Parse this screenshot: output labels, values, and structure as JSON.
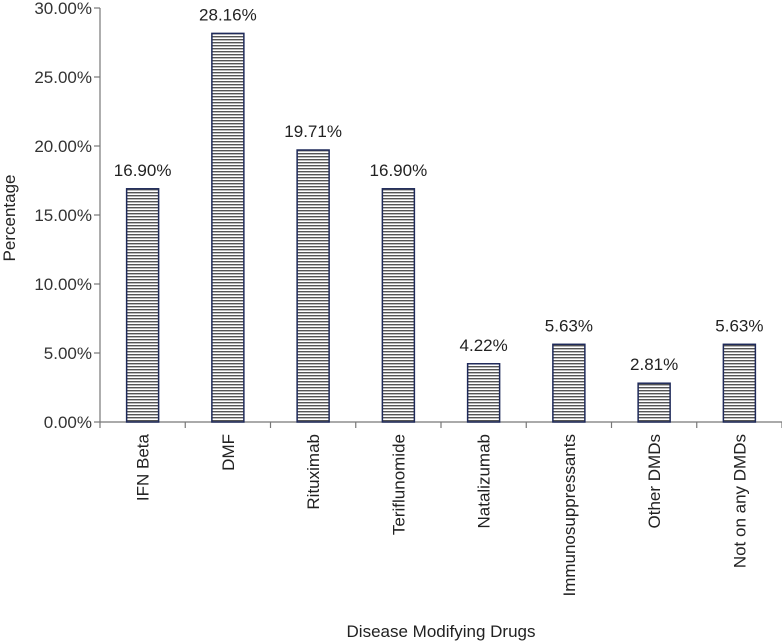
{
  "chart_data": {
    "type": "bar",
    "title": "",
    "xlabel": "Disease Modifying Drugs",
    "ylabel": "Percentage",
    "ylim": [
      0,
      30
    ],
    "y_ticks": [
      "0.00%",
      "5.00%",
      "10.00%",
      "15.00%",
      "20.00%",
      "25.00%",
      "30.00%"
    ],
    "categories": [
      "IFN Beta",
      "DMF",
      "Rituximab",
      "Teriflunomide",
      "Natalizumab",
      "Immunosuppressants",
      "Other DMDs",
      "Not on any DMDs"
    ],
    "values": [
      16.9,
      28.16,
      19.71,
      16.9,
      4.22,
      5.63,
      2.81,
      5.63
    ],
    "data_labels": [
      "16.90%",
      "28.16%",
      "19.71%",
      "16.90%",
      "4.22%",
      "5.63%",
      "2.81%",
      "5.63%"
    ],
    "grid": false,
    "legend": "none",
    "colors": {
      "bar_stroke": "#1f2a5a",
      "bar_fill_stripe": "#555555",
      "bar_fill_bg": "#ffffff",
      "axis": "#777777"
    }
  }
}
